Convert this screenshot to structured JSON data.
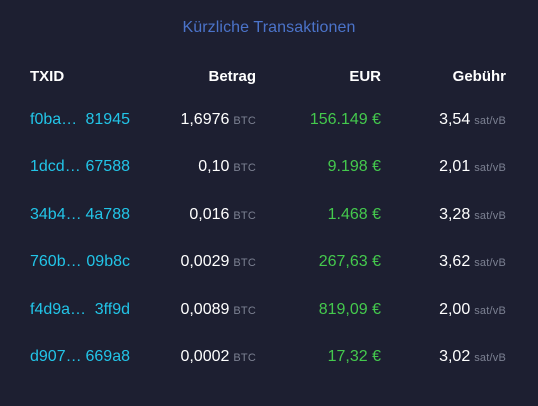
{
  "title": "Kürzliche Transaktionen",
  "columns": {
    "txid": "TXID",
    "amount": "Betrag",
    "eur": "EUR",
    "fee": "Gebühr"
  },
  "units": {
    "btc": "BTC",
    "fee": "sat/vB"
  },
  "colors": {
    "background": "#1d1f31",
    "title": "#4b73c9",
    "txid": "#22c5e8",
    "eur": "#44c94d",
    "unit": "#7c8192"
  },
  "rows": [
    {
      "txid_start": "f0ba…",
      "txid_end": "81945",
      "amount": "1,6976",
      "eur": "156.149 €",
      "fee": "3,54"
    },
    {
      "txid_start": "1dcd…",
      "txid_end": "67588",
      "amount": "0,10",
      "eur": "9.198 €",
      "fee": "2,01"
    },
    {
      "txid_start": "34b4…",
      "txid_end": "4a788",
      "amount": "0,016",
      "eur": "1.468 €",
      "fee": "3,28"
    },
    {
      "txid_start": "760b…",
      "txid_end": "09b8c",
      "amount": "0,0029",
      "eur": "267,63 €",
      "fee": "3,62"
    },
    {
      "txid_start": "f4d9a…",
      "txid_end": "3ff9d",
      "amount": "0,0089",
      "eur": "819,09 €",
      "fee": "2,00"
    },
    {
      "txid_start": "d907…",
      "txid_end": "669a8",
      "amount": "0,0002",
      "eur": "17,32 €",
      "fee": "3,02"
    }
  ]
}
